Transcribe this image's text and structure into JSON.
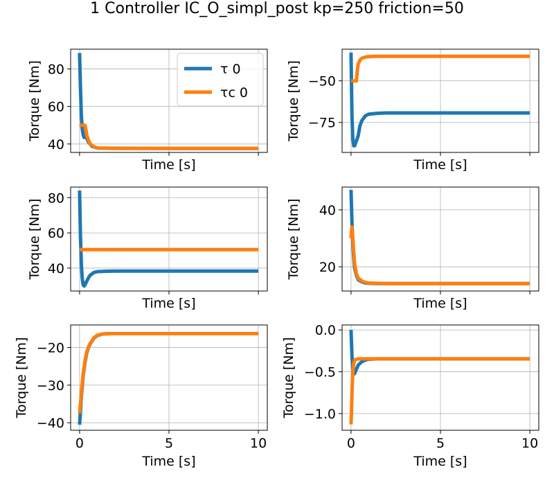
{
  "title": "1 Controller IC_O_simpl_post kp=250 friction=50",
  "colors": {
    "tau": "#1f77b4",
    "tau_c": "#ff7f0e",
    "grid": "#b0b0b0"
  },
  "legend": {
    "placement": "top-right",
    "entries": [
      "τ 0",
      "τc 0"
    ],
    "in_subplot": 0
  },
  "chart_data": [
    {
      "type": "line",
      "xlabel": "Time [s]",
      "ylabel": "Torque [Nm]",
      "xlim": [
        -0.5,
        10.5
      ],
      "ylim": [
        35.5,
        90.5
      ],
      "xticks": [
        0,
        5,
        10
      ],
      "yticks": [
        40,
        60,
        80
      ],
      "ytick_labels": [
        "40",
        "60",
        "80"
      ],
      "show_xticklabels": false,
      "grid": true,
      "series": [
        {
          "name": "τ 0",
          "x": [
            0,
            0.05,
            0.1,
            0.15,
            0.2,
            0.25,
            0.3,
            0.4,
            0.5,
            0.7,
            1.0,
            2.0,
            5.0,
            10.0
          ],
          "y": [
            88.5,
            70,
            55,
            48,
            45,
            43.5,
            44,
            43,
            41,
            38.7,
            37.8,
            37.7,
            37.6,
            37.6
          ]
        },
        {
          "name": "τc 0",
          "x": [
            0,
            0.05,
            0.1,
            0.2,
            0.3,
            0.35,
            0.4,
            0.5,
            0.6,
            0.8,
            1.0,
            1.5,
            2.0,
            5.0,
            10.0
          ],
          "y": [
            50,
            50,
            50,
            50,
            50,
            48,
            45,
            42,
            40,
            38.5,
            37.9,
            37.7,
            37.6,
            37.6,
            37.6
          ]
        }
      ]
    },
    {
      "type": "line",
      "xlabel": "Time [s]",
      "ylabel": "Torque [Nm]",
      "xlim": [
        -0.5,
        10.5
      ],
      "ylim": [
        -93,
        -31
      ],
      "xticks": [
        0,
        5,
        10
      ],
      "yticks": [
        -75,
        -50
      ],
      "ytick_labels": [
        "−75",
        "−50"
      ],
      "show_xticklabels": false,
      "grid": true,
      "series": [
        {
          "name": "τ 0",
          "x": [
            0,
            0.05,
            0.1,
            0.15,
            0.2,
            0.3,
            0.4,
            0.5,
            0.6,
            0.8,
            1.0,
            1.5,
            2.0,
            5.0,
            10.0
          ],
          "y": [
            -33,
            -70,
            -85,
            -89,
            -89,
            -86,
            -83,
            -77,
            -74,
            -71,
            -70,
            -69.5,
            -69.3,
            -69.3,
            -69.3
          ]
        },
        {
          "name": "τc 0",
          "x": [
            0,
            0.1,
            0.2,
            0.3,
            0.35,
            0.4,
            0.5,
            0.6,
            0.8,
            1.0,
            1.5,
            2.0,
            5.0,
            10.0
          ],
          "y": [
            -50,
            -50,
            -50,
            -50,
            -44,
            -40,
            -37.5,
            -36.5,
            -35.7,
            -35.5,
            -35.3,
            -35.3,
            -35.3,
            -35.3
          ]
        }
      ]
    },
    {
      "type": "line",
      "xlabel": "Time [s]",
      "ylabel": "Torque [Nm]",
      "xlim": [
        -0.5,
        10.5
      ],
      "ylim": [
        27,
        86
      ],
      "xticks": [
        0,
        5,
        10
      ],
      "yticks": [
        40,
        60,
        80
      ],
      "ytick_labels": [
        "40",
        "60",
        "80"
      ],
      "show_xticklabels": false,
      "grid": true,
      "series": [
        {
          "name": "τ 0",
          "x": [
            0,
            0.05,
            0.1,
            0.15,
            0.2,
            0.25,
            0.3,
            0.4,
            0.5,
            0.6,
            0.8,
            1.0,
            1.5,
            2.0,
            5.0,
            10.0
          ],
          "y": [
            84,
            58,
            42,
            34,
            30.5,
            29.8,
            30.5,
            32.5,
            34.5,
            36,
            37.5,
            38,
            38.2,
            38.3,
            38.3,
            38.3
          ]
        },
        {
          "name": "τc 0",
          "x": [
            0,
            10.0
          ],
          "y": [
            50.5,
            50.5
          ]
        }
      ]
    },
    {
      "type": "line",
      "xlabel": "Time [s]",
      "ylabel": "Torque [Nm]",
      "xlim": [
        -0.5,
        10.5
      ],
      "ylim": [
        11.5,
        48
      ],
      "xticks": [
        0,
        5,
        10
      ],
      "yticks": [
        20,
        40
      ],
      "ytick_labels": [
        "20",
        "40"
      ],
      "show_xticklabels": false,
      "grid": true,
      "series": [
        {
          "name": "τ 0",
          "x": [
            0,
            0.05,
            0.1,
            0.15,
            0.2,
            0.3,
            0.4,
            0.6,
            0.8,
            1.0,
            1.5,
            2.0,
            5.0,
            10.0
          ],
          "y": [
            47,
            36,
            28,
            23,
            19.5,
            17,
            15.5,
            14.7,
            14.3,
            14.2,
            14.1,
            14.1,
            14.1,
            14.1
          ]
        },
        {
          "name": "τc 0",
          "x": [
            0,
            0.05,
            0.1,
            0.15,
            0.2,
            0.3,
            0.4,
            0.6,
            0.8,
            1.0,
            1.5,
            2.0,
            5.0,
            10.0
          ],
          "y": [
            30,
            34,
            30,
            25,
            21,
            17.5,
            16,
            15,
            14.5,
            14.3,
            14.2,
            14.1,
            14.1,
            14.1
          ]
        }
      ]
    },
    {
      "type": "line",
      "xlabel": "Time [s]",
      "ylabel": "Torque [Nm]",
      "xlim": [
        -0.5,
        10.5
      ],
      "ylim": [
        -42,
        -14
      ],
      "xticks": [
        0,
        5,
        10
      ],
      "yticks": [
        -40,
        -30,
        -20
      ],
      "ytick_labels": [
        "−40",
        "−30",
        "−20"
      ],
      "xtick_labels": [
        "0",
        "5",
        "10"
      ],
      "show_xticklabels": true,
      "grid": true,
      "series": [
        {
          "name": "τ 0",
          "x": [
            0,
            0.05,
            0.1,
            0.2,
            0.3,
            0.4,
            0.5,
            0.6,
            0.8,
            1.0,
            1.3,
            1.7,
            2.0,
            5.0,
            10.0
          ],
          "y": [
            -40.5,
            -37,
            -33,
            -27.5,
            -24,
            -21.5,
            -20,
            -19,
            -17.5,
            -16.8,
            -16.4,
            -16.3,
            -16.3,
            -16.3,
            -16.3
          ]
        },
        {
          "name": "τc 0",
          "x": [
            0,
            0.05,
            0.1,
            0.2,
            0.3,
            0.4,
            0.5,
            0.6,
            0.8,
            1.0,
            1.3,
            1.7,
            2.0,
            5.0,
            10.0
          ],
          "y": [
            -37.5,
            -35,
            -32,
            -27,
            -23.5,
            -21.2,
            -19.8,
            -18.8,
            -17.4,
            -16.7,
            -16.4,
            -16.3,
            -16.3,
            -16.3,
            -16.3
          ]
        }
      ]
    },
    {
      "type": "line",
      "xlabel": "Time [s]",
      "ylabel": "Torque [Nm]",
      "xlim": [
        -0.5,
        10.5
      ],
      "ylim": [
        -1.2,
        0.06
      ],
      "xticks": [
        0,
        5,
        10
      ],
      "yticks": [
        -1.0,
        -0.5,
        0.0
      ],
      "ytick_labels": [
        "−1.0",
        "−0.5",
        "0.0"
      ],
      "xtick_labels": [
        "0",
        "5",
        "10"
      ],
      "show_xticklabels": true,
      "grid": true,
      "series": [
        {
          "name": "τ 0",
          "x": [
            0,
            0.05,
            0.1,
            0.15,
            0.2,
            0.3,
            0.4,
            0.6,
            0.8,
            1.0,
            1.5,
            2.0,
            5.0,
            10.0
          ],
          "y": [
            0.0,
            -0.3,
            -0.47,
            -0.53,
            -0.52,
            -0.47,
            -0.42,
            -0.38,
            -0.36,
            -0.35,
            -0.345,
            -0.345,
            -0.345,
            -0.345
          ]
        },
        {
          "name": "τc 0",
          "x": [
            0,
            0.03,
            0.06,
            0.1,
            0.15,
            0.2,
            0.3,
            0.4,
            0.6,
            1.0,
            2.0,
            5.0,
            10.0
          ],
          "y": [
            -1.13,
            -0.95,
            -0.7,
            -0.5,
            -0.4,
            -0.36,
            -0.35,
            -0.345,
            -0.345,
            -0.345,
            -0.345,
            -0.345,
            -0.345
          ]
        }
      ]
    }
  ]
}
